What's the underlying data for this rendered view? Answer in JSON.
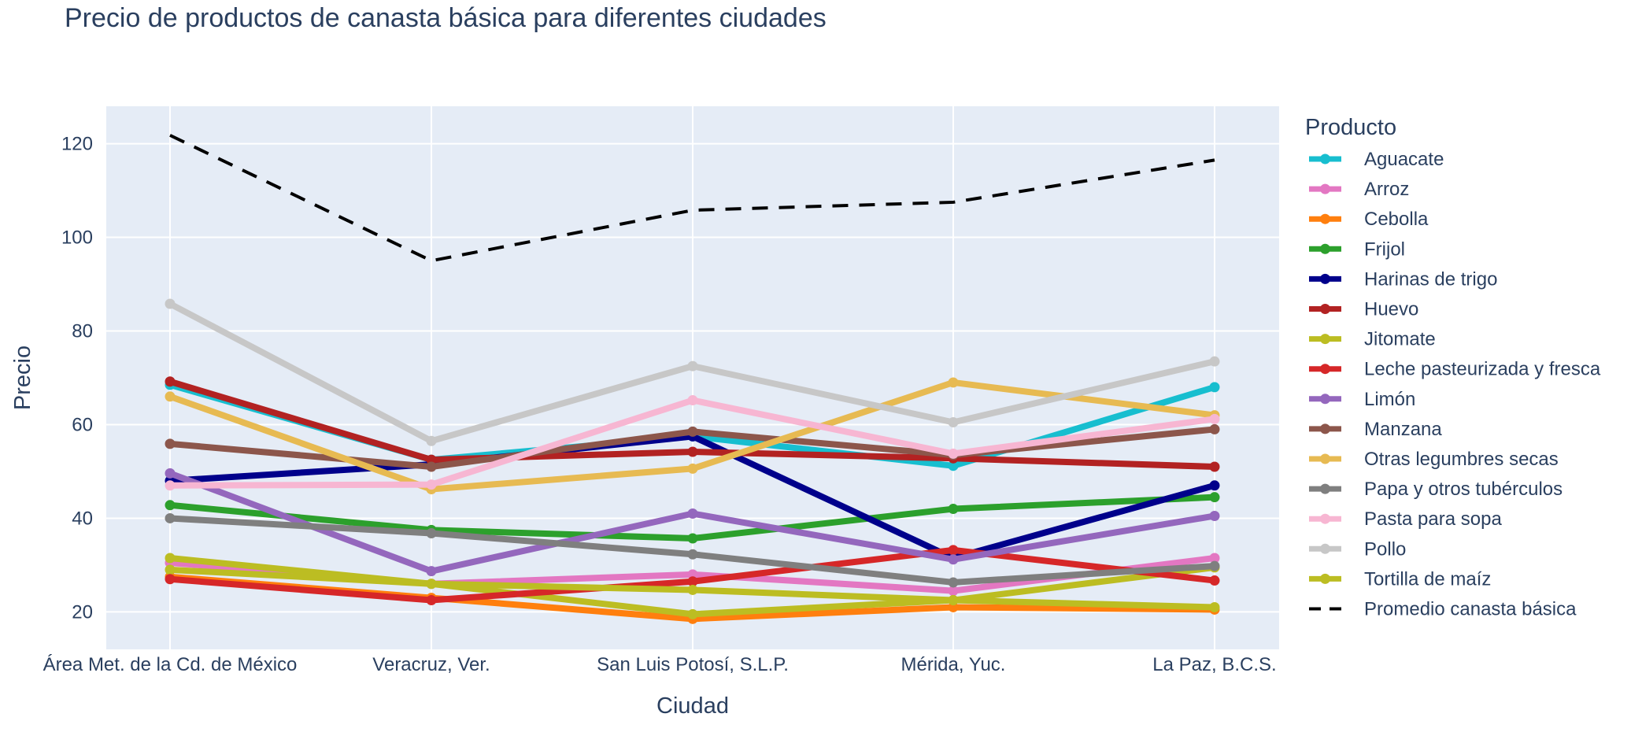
{
  "chart_data": {
    "type": "line",
    "title": "Precio de productos de canasta básica para diferentes ciudades",
    "xlabel": "Ciudad",
    "ylabel": "Precio",
    "legend_title": "Producto",
    "legend_position": "right",
    "grid": true,
    "ylim": [
      12,
      128
    ],
    "yticks": [
      20,
      40,
      60,
      80,
      100,
      120
    ],
    "categories": [
      "Área Met. de la Cd. de México",
      "Veracruz, Ver.",
      "San Luis Potosí, S.L.P.",
      "Mérida, Yuc.",
      "La Paz, B.C.S."
    ],
    "series": [
      {
        "name": "Aguacate",
        "color": "#17becf",
        "values": [
          68.5,
          52.5,
          57.5,
          51.2,
          68.0
        ]
      },
      {
        "name": "Arroz",
        "color": "#e377c2",
        "values": [
          30.5,
          26.0,
          28.0,
          24.5,
          31.5
        ]
      },
      {
        "name": "Cebolla",
        "color": "#ff7f0e",
        "values": [
          27.5,
          23.0,
          18.5,
          21.0,
          20.5
        ]
      },
      {
        "name": "Frijol",
        "color": "#2ca02c",
        "values": [
          42.8,
          37.5,
          35.7,
          42.0,
          44.5
        ]
      },
      {
        "name": "Harinas de trigo",
        "color": "#00008b",
        "values": [
          48.0,
          51.5,
          57.5,
          31.5,
          47.0
        ]
      },
      {
        "name": "Huevo",
        "color": "#b22222",
        "values": [
          69.2,
          52.5,
          54.2,
          52.8,
          51.0
        ]
      },
      {
        "name": "Jitomate",
        "color": "#bcbd22",
        "values": [
          29.0,
          26.0,
          19.5,
          22.5,
          29.5
        ]
      },
      {
        "name": "Leche pasteurizada y fresca",
        "color": "#d62728",
        "values": [
          27.0,
          22.5,
          26.5,
          33.2,
          26.7
        ]
      },
      {
        "name": "Limón",
        "color": "#9467bd",
        "values": [
          49.6,
          28.7,
          41.0,
          31.2,
          40.5
        ]
      },
      {
        "name": "Manzana",
        "color": "#8c564b",
        "values": [
          55.9,
          51.0,
          58.5,
          53.5,
          59.0
        ]
      },
      {
        "name": "Otras legumbres secas",
        "color": "#e7ba52",
        "values": [
          66.0,
          46.2,
          50.6,
          69.0,
          62.0
        ]
      },
      {
        "name": "Papa y otros tubérculos",
        "color": "#7f7f7f",
        "values": [
          40.0,
          36.8,
          32.3,
          26.3,
          29.8
        ]
      },
      {
        "name": "Pasta para sopa",
        "color": "#f7b6d2",
        "values": [
          47.0,
          47.2,
          65.2,
          53.8,
          61.2
        ]
      },
      {
        "name": "Pollo",
        "color": "#c7c7c7",
        "values": [
          85.8,
          56.5,
          72.5,
          60.5,
          73.5
        ]
      },
      {
        "name": "Tortilla de maíz",
        "color": "#bcbd22",
        "values": [
          31.5,
          26.0,
          24.7,
          22.5,
          21.0
        ]
      },
      {
        "name": "Promedio canasta básica",
        "color": "#000000",
        "dash": true,
        "values": [
          121.8,
          95.0,
          105.8,
          107.5,
          116.5
        ]
      }
    ]
  }
}
